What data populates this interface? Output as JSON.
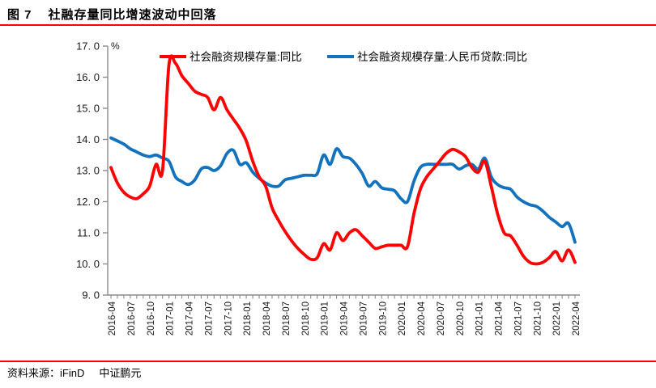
{
  "header": {
    "figure_label": "图 7",
    "title": "社融存量同比增速波动中回落"
  },
  "source": {
    "label": "资料来源：iFinD",
    "brand": "中证鹏元"
  },
  "accent": {
    "rule_color": "#FE0000",
    "axis_color": "#8c8c8c"
  },
  "chart_data": {
    "type": "line",
    "title": "社融存量同比增速波动中回落",
    "unit_label": "%",
    "xlabel": "",
    "ylabel": "%",
    "ylim": [
      9.0,
      17.0
    ],
    "y_tick_step": 1.0,
    "grid": false,
    "legend_position": "top",
    "y_tick_labels": [
      "9. 0",
      "10. 0",
      "11. 0",
      "12. 0",
      "13. 0",
      "14. 0",
      "15. 0",
      "16. 0",
      "17. 0"
    ],
    "x_tick_labels": [
      "2016-04",
      "2016-07",
      "2016-10",
      "2017-01",
      "2017-04",
      "2017-07",
      "2017-10",
      "2018-01",
      "2018-04",
      "2018-07",
      "2018-10",
      "2019-01",
      "2019-04",
      "2019-07",
      "2019-10",
      "2020-01",
      "2020-04",
      "2020-07",
      "2020-10",
      "2021-01",
      "2021-04",
      "2021-07",
      "2021-10",
      "2022-01",
      "2022-04"
    ],
    "months_per_tick": 3,
    "x_start": "2016-04",
    "x_end": "2022-04",
    "series": [
      {
        "name": "社会融资规模存量:同比",
        "color": "#FE0000",
        "values": [
          13.1,
          12.6,
          12.3,
          12.15,
          12.1,
          12.25,
          12.5,
          13.2,
          13.0,
          16.4,
          16.45,
          16.05,
          15.8,
          15.55,
          15.45,
          15.35,
          14.95,
          15.35,
          14.95,
          14.65,
          14.35,
          13.95,
          13.3,
          12.8,
          12.5,
          11.8,
          11.4,
          11.05,
          10.75,
          10.5,
          10.3,
          10.15,
          10.2,
          10.65,
          10.45,
          11.0,
          10.75,
          11.0,
          11.1,
          10.9,
          10.7,
          10.5,
          10.55,
          10.6,
          10.6,
          10.6,
          10.55,
          11.6,
          12.4,
          12.8,
          13.05,
          13.3,
          13.55,
          13.68,
          13.6,
          13.45,
          13.1,
          12.95,
          13.3,
          12.5,
          11.6,
          11.0,
          10.9,
          10.6,
          10.25,
          10.05,
          10.0,
          10.05,
          10.2,
          10.4,
          10.1,
          10.45,
          10.05
        ]
      },
      {
        "name": "社会融资规模存量:人民币贷款:同比",
        "color": "#1272BD",
        "values": [
          14.05,
          13.95,
          13.85,
          13.7,
          13.6,
          13.5,
          13.45,
          13.5,
          13.4,
          13.3,
          12.8,
          12.65,
          12.55,
          12.7,
          13.05,
          13.1,
          13.0,
          13.15,
          13.55,
          13.65,
          13.2,
          13.25,
          12.95,
          12.75,
          12.6,
          12.5,
          12.5,
          12.7,
          12.75,
          12.8,
          12.85,
          12.85,
          12.9,
          13.5,
          13.2,
          13.7,
          13.45,
          13.4,
          13.2,
          12.9,
          12.5,
          12.65,
          12.45,
          12.4,
          12.35,
          12.1,
          12.0,
          12.65,
          13.1,
          13.2,
          13.2,
          13.2,
          13.2,
          13.2,
          13.05,
          13.15,
          13.2,
          13.05,
          13.4,
          12.8,
          12.55,
          12.45,
          12.4,
          12.15,
          12.0,
          11.9,
          11.85,
          11.7,
          11.5,
          11.35,
          11.2,
          11.3,
          10.7
        ]
      }
    ]
  }
}
